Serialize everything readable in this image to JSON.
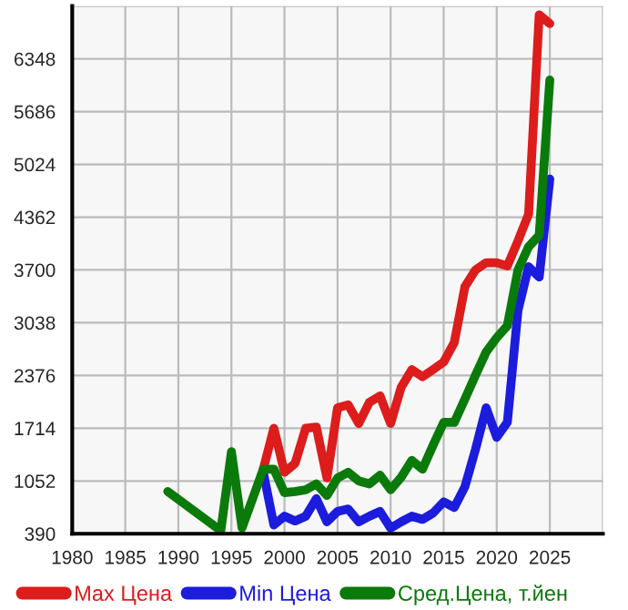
{
  "chart_data": {
    "type": "line",
    "xlim": [
      1980,
      2030
    ],
    "ylim": [
      390,
      7010
    ],
    "xticks": [
      1980,
      1985,
      1990,
      1995,
      2000,
      2005,
      2010,
      2015,
      2020,
      2025,
      {
        "value": 2030,
        "label": null
      }
    ],
    "yticks": [
      390,
      1052,
      1714,
      2376,
      3038,
      3700,
      4362,
      5024,
      5686,
      6348,
      {
        "value": 7010,
        "label": null
      }
    ],
    "grid": true,
    "legend": "bottom",
    "marker": "none",
    "line_style": "solid",
    "series": [
      {
        "name": "Max Цена",
        "color": "#dd1c1c",
        "x": [
          1998,
          1999,
          2000,
          2001,
          2002,
          2003,
          2004,
          2005,
          2006,
          2007,
          2008,
          2009,
          2010,
          2011,
          2012,
          2013,
          2014,
          2015,
          2016,
          2017,
          2018,
          2019,
          2020,
          2021,
          2022,
          2023,
          2024,
          2025
        ],
        "values": [
          1200,
          1714,
          1162,
          1273,
          1714,
          1728,
          1090,
          1970,
          2007,
          1773,
          2040,
          2120,
          1773,
          2230,
          2450,
          2360,
          2450,
          2545,
          2790,
          3490,
          3700,
          3790,
          3790,
          3750,
          4065,
          4400,
          6900,
          6790
        ]
      },
      {
        "name": "Min Цена",
        "color": "#1c1cdd",
        "x": [
          1998,
          1999,
          2000,
          2001,
          2002,
          2003,
          2004,
          2005,
          2006,
          2007,
          2008,
          2009,
          2010,
          2011,
          2012,
          2013,
          2014,
          2015,
          2016,
          2017,
          2018,
          2019,
          2020,
          2021,
          2022,
          2023,
          2024,
          2025
        ],
        "values": [
          1162,
          500,
          610,
          550,
          610,
          830,
          540,
          670,
          700,
          540,
          610,
          670,
          460,
          540,
          610,
          570,
          650,
          790,
          720,
          980,
          1450,
          1970,
          1600,
          1790,
          3190,
          3740,
          3610,
          4840
        ]
      },
      {
        "name": "Сред.Цена, т.йен",
        "color": "#0a7a0a",
        "x": [
          1989,
          1994,
          1995,
          1996,
          1998,
          1999,
          2000,
          2001,
          2002,
          2003,
          2004,
          2005,
          2006,
          2007,
          2008,
          2009,
          2010,
          2011,
          2012,
          2013,
          2014,
          2015,
          2016,
          2017,
          2018,
          2019,
          2020,
          2021,
          2022,
          2023,
          2024,
          2025
        ],
        "values": [
          920,
          428,
          1420,
          463,
          1200,
          1200,
          905,
          920,
          942,
          1015,
          870,
          1090,
          1162,
          1052,
          1015,
          1125,
          942,
          1100,
          1310,
          1200,
          1500,
          1787,
          1787,
          2080,
          2380,
          2670,
          2850,
          3000,
          3700,
          3990,
          4135,
          6083
        ]
      }
    ]
  }
}
